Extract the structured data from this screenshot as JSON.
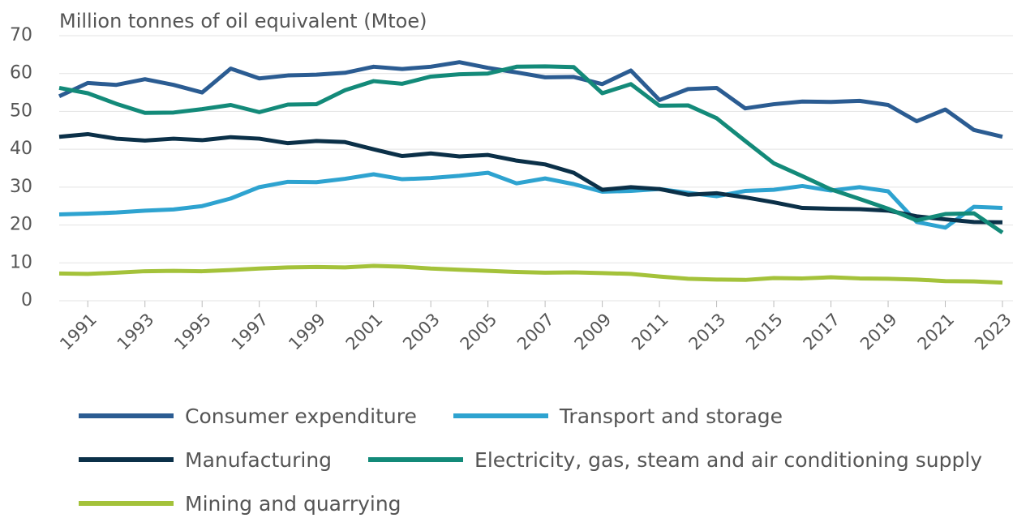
{
  "chart_data": {
    "type": "line",
    "y_axis_label": "Million tonnes of oil equivalent (Mtoe)",
    "x": [
      1990,
      1991,
      1992,
      1993,
      1994,
      1995,
      1996,
      1997,
      1998,
      1999,
      2000,
      2001,
      2002,
      2003,
      2004,
      2005,
      2006,
      2007,
      2008,
      2009,
      2010,
      2011,
      2012,
      2013,
      2014,
      2015,
      2016,
      2017,
      2018,
      2019,
      2020,
      2021,
      2022,
      2023
    ],
    "xlim": [
      1990,
      2023
    ],
    "xticks": [
      1991,
      1993,
      1995,
      1997,
      1999,
      2001,
      2003,
      2005,
      2007,
      2009,
      2011,
      2013,
      2015,
      2017,
      2019,
      2021,
      2023
    ],
    "ylim": [
      0,
      70
    ],
    "yticks": [
      0,
      10,
      20,
      30,
      40,
      50,
      60,
      70
    ],
    "grid": true,
    "legend": "bottom",
    "series": [
      {
        "name": "Consumer expenditure",
        "color": "#2b5c92",
        "values": [
          54,
          57.5,
          57,
          58.5,
          57,
          55,
          61.3,
          58.7,
          59.5,
          59.7,
          60.2,
          61.8,
          61.2,
          61.8,
          63,
          61.5,
          60.3,
          59,
          59.1,
          57.2,
          60.8,
          53,
          55.9,
          56.2,
          50.8,
          51.9,
          52.6,
          52.5,
          52.8,
          51.7,
          47.4,
          50.5,
          45.1,
          43.3
        ]
      },
      {
        "name": "Transport and storage",
        "color": "#2ea3d0",
        "values": [
          22.8,
          23,
          23.3,
          23.8,
          24.1,
          25,
          27,
          30,
          31.4,
          31.3,
          32.2,
          33.4,
          32.1,
          32.4,
          33,
          33.8,
          31,
          32.3,
          30.8,
          28.8,
          29,
          29.5,
          28.5,
          27.6,
          29,
          29.3,
          30.3,
          29.1,
          30,
          28.9,
          20.8,
          19.3,
          24.8,
          24.5
        ]
      },
      {
        "name": "Manufacturing",
        "color": "#0b3048",
        "values": [
          43.3,
          44,
          42.8,
          42.3,
          42.8,
          42.4,
          43.2,
          42.8,
          41.6,
          42.2,
          41.9,
          40,
          38.2,
          38.9,
          38.1,
          38.5,
          37,
          36,
          33.8,
          29.3,
          30,
          29.5,
          28,
          28.4,
          27.3,
          26,
          24.5,
          24.3,
          24.2,
          23.8,
          22.3,
          21.5,
          20.8,
          20.7
        ]
      },
      {
        "name": "Electricity, gas, steam and air conditioning supply",
        "color": "#138a79",
        "values": [
          56.2,
          54.8,
          52,
          49.6,
          49.7,
          50.6,
          51.7,
          49.8,
          51.8,
          51.9,
          55.6,
          58,
          57.3,
          59.2,
          59.8,
          60,
          61.8,
          61.9,
          61.7,
          54.8,
          57.2,
          51.5,
          51.6,
          48.2,
          42.2,
          36.3,
          32.9,
          29.4,
          26.9,
          24.3,
          21.2,
          22.9,
          23.1,
          18
        ]
      },
      {
        "name": "Mining and quarrying",
        "color": "#a4c23a",
        "values": [
          7.2,
          7.1,
          7.4,
          7.8,
          7.9,
          7.8,
          8.1,
          8.5,
          8.8,
          8.9,
          8.8,
          9.2,
          9,
          8.5,
          8.2,
          7.9,
          7.6,
          7.4,
          7.5,
          7.3,
          7.1,
          6.4,
          5.8,
          5.6,
          5.5,
          6,
          5.9,
          6.2,
          5.9,
          5.8,
          5.6,
          5.2,
          5.1,
          4.8
        ]
      }
    ]
  }
}
